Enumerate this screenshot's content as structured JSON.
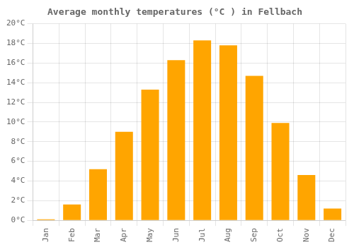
{
  "chart_data": {
    "type": "bar",
    "title": "Average monthly temperatures (°C ) in Fellbach",
    "categories": [
      "Jan",
      "Feb",
      "Mar",
      "Apr",
      "May",
      "Jun",
      "Jul",
      "Aug",
      "Sep",
      "Oct",
      "Nov",
      "Dec"
    ],
    "values": [
      0.1,
      1.6,
      5.2,
      9.0,
      13.3,
      16.3,
      18.3,
      17.8,
      14.7,
      9.9,
      4.6,
      1.2
    ],
    "color": "#FFA500",
    "ylim": [
      0,
      20
    ],
    "yticks": [
      {
        "value": 0,
        "label": "0°C"
      },
      {
        "value": 2,
        "label": "2°C"
      },
      {
        "value": 4,
        "label": "4°C"
      },
      {
        "value": 6,
        "label": "6°C"
      },
      {
        "value": 8,
        "label": "8°C"
      },
      {
        "value": 10,
        "label": "10°C"
      },
      {
        "value": 12,
        "label": "12°C"
      },
      {
        "value": 14,
        "label": "14°C"
      },
      {
        "value": 16,
        "label": "16°C"
      },
      {
        "value": 18,
        "label": "18°C"
      },
      {
        "value": 20,
        "label": "20°C"
      }
    ],
    "grid": true
  }
}
